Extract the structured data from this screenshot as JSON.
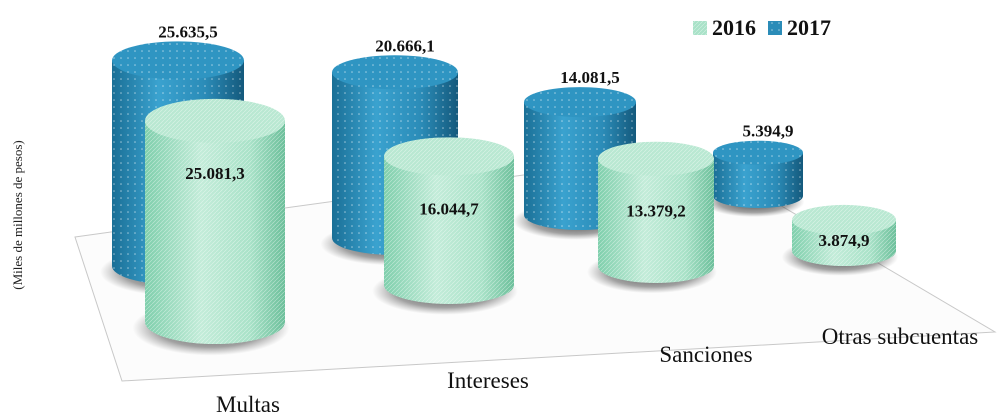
{
  "chart_data": {
    "type": "bar",
    "title": "",
    "ylabel": "(Miles de millones de pesos)",
    "categories": [
      "Multas",
      "Intereses",
      "Sanciones",
      "Otras subcuentas"
    ],
    "series": [
      {
        "name": "2016",
        "values": [
          25081.3,
          16044.7,
          13379.2,
          3874.9
        ],
        "labels": [
          "25.081,3",
          "16.044,7",
          "13.379,2",
          "3.874,9"
        ],
        "color": "#a9e2c8"
      },
      {
        "name": "2017",
        "values": [
          25635.5,
          20666.1,
          14081.5,
          5394.9
        ],
        "labels": [
          "25.635,5",
          "20.666,1",
          "14.081,5",
          "5.394,9"
        ],
        "color": "#2b8cb8"
      }
    ],
    "legend_position": "top-right",
    "style": "3d-cylinder"
  }
}
